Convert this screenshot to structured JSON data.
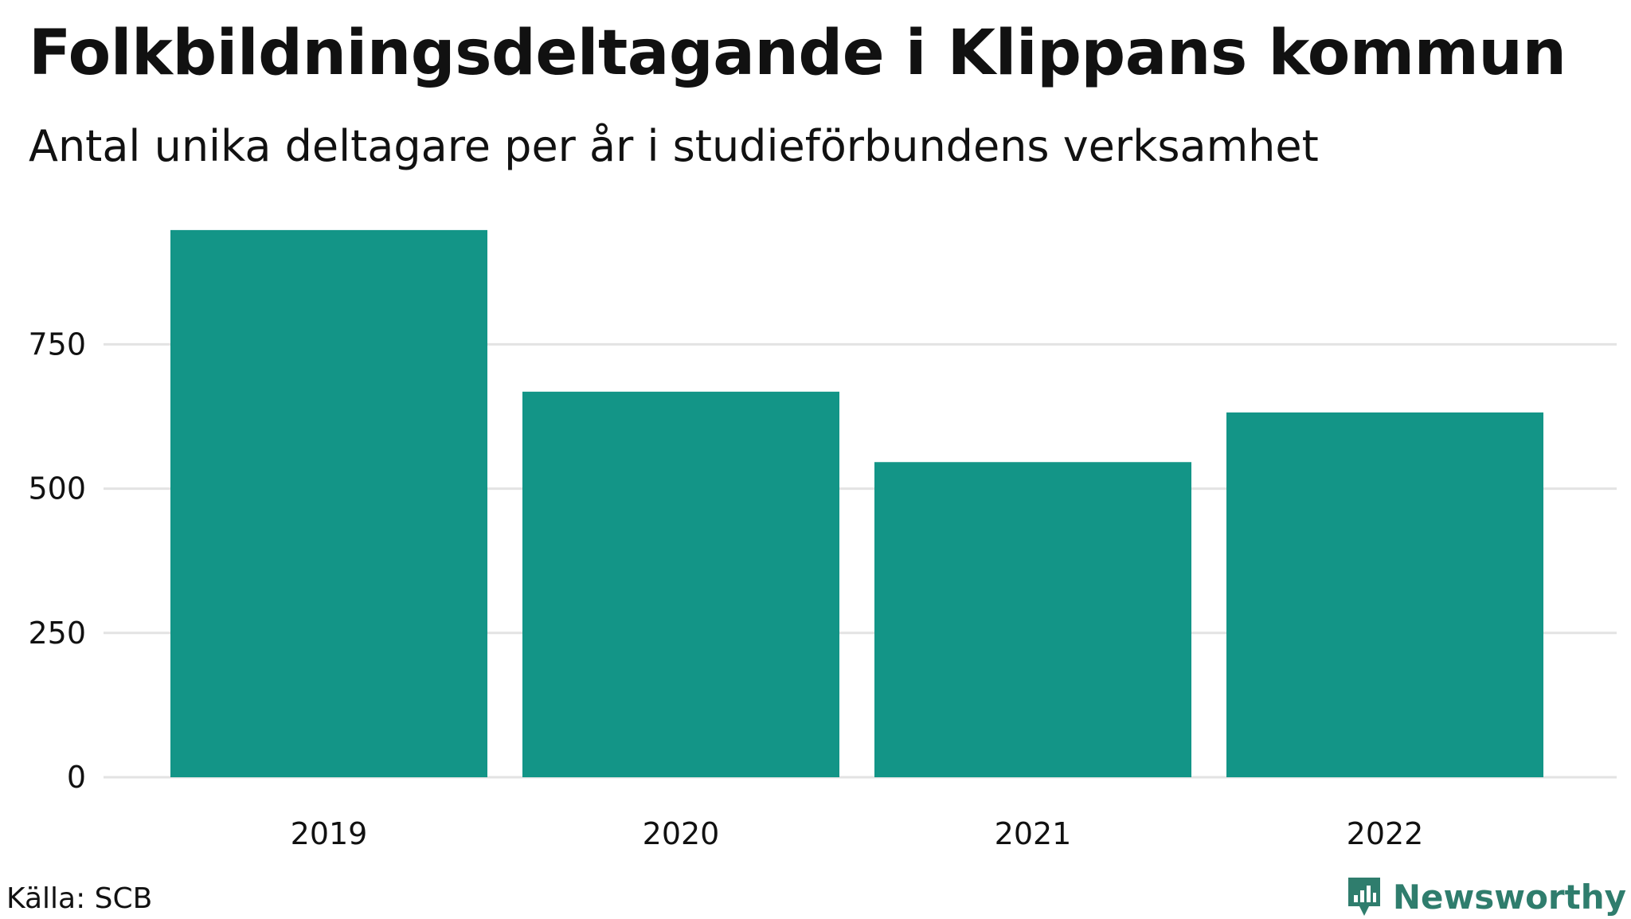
{
  "header": {
    "title": "Folkbildningsdeltagande i Klippans kommun",
    "subtitle": "Antal unika deltagare per år i studieförbundens verksamhet"
  },
  "footer": {
    "source": "Källa: SCB",
    "brand": "Newsworthy",
    "brand_icon": "newsworthy-logo-icon"
  },
  "colors": {
    "bar": "#139587",
    "grid": "#e3e3e3",
    "brand": "#2f7d6d"
  },
  "chart_data": {
    "type": "bar",
    "title": "Folkbildningsdeltagande i Klippans kommun",
    "subtitle": "Antal unika deltagare per år i studieförbundens verksamhet",
    "categories": [
      "2019",
      "2020",
      "2021",
      "2022"
    ],
    "values": [
      948,
      668,
      546,
      632
    ],
    "yticks": [
      0,
      250,
      500,
      750
    ],
    "ytick_labels": [
      "0",
      "250",
      "500",
      "750"
    ],
    "ylim": [
      0,
      1000
    ],
    "xlabel": "",
    "ylabel": "",
    "grid": true
  }
}
